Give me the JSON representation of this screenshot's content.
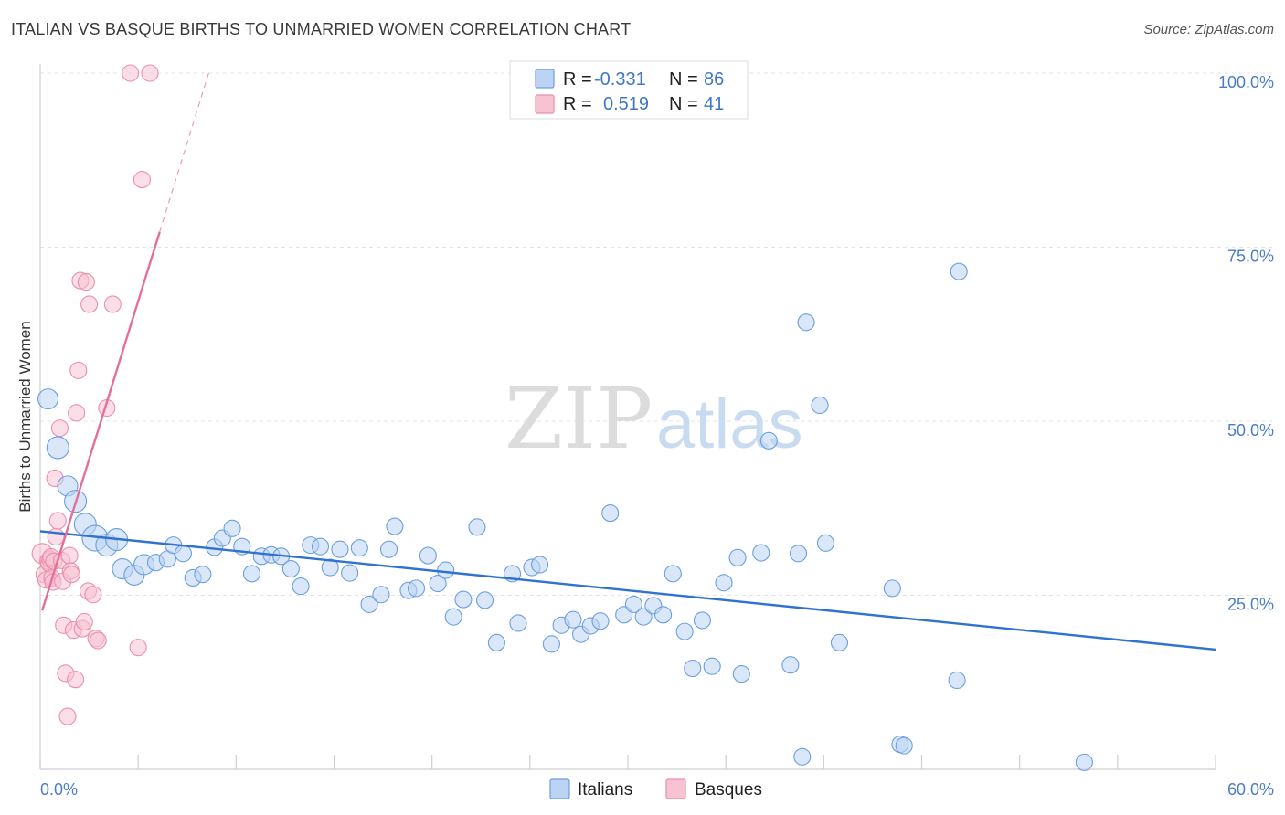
{
  "title": "ITALIAN VS BASQUE BIRTHS TO UNMARRIED WOMEN CORRELATION CHART",
  "source": "Source: ZipAtlas.com",
  "watermark": {
    "zip": "ZIP",
    "atlas": "atlas"
  },
  "chart_data": {
    "type": "scatter",
    "ylabel": "Births to Unmarried Women",
    "xlim": [
      0,
      60
    ],
    "ylim": [
      0,
      100
    ],
    "x_tick_labels": [
      "0.0%",
      "60.0%"
    ],
    "y_ticks": [
      25,
      50,
      75,
      100
    ],
    "y_tick_labels": [
      "25.0%",
      "50.0%",
      "75.0%",
      "100.0%"
    ],
    "grid": true,
    "legend_position": "top-center",
    "colors": {
      "italians": "#6a9fe0",
      "italians_fill": "#bcd3f3",
      "italians_line": "#2f72cf",
      "basques": "#ec8eac",
      "basques_fill": "#f7c3d3",
      "basques_line": "#e4709a"
    },
    "stats": [
      {
        "r_label": "R = ",
        "r": "-0.331",
        "n_label": "N = ",
        "n": "86"
      },
      {
        "r_label": "R = ",
        "r": "0.519",
        "n_label": "N = ",
        "n": "41"
      }
    ],
    "series": [
      {
        "name": "Italians",
        "trend": {
          "x": [
            0,
            60
          ],
          "y": [
            34.2,
            17.2
          ]
        },
        "points": [
          [
            0.4,
            53.2,
            11
          ],
          [
            0.9,
            46.2,
            12
          ],
          [
            1.4,
            40.7,
            11
          ],
          [
            1.8,
            38.5,
            12
          ],
          [
            2.3,
            35.2,
            12
          ],
          [
            2.8,
            33.2,
            14
          ],
          [
            3.4,
            32.2,
            12
          ],
          [
            3.9,
            33.0,
            12
          ],
          [
            4.2,
            28.8,
            11
          ],
          [
            4.8,
            27.9,
            11
          ],
          [
            5.3,
            29.4,
            11
          ],
          [
            5.9,
            29.7,
            9
          ],
          [
            6.5,
            30.2,
            9
          ],
          [
            6.8,
            32.2,
            9
          ],
          [
            7.3,
            31.0,
            9
          ],
          [
            7.8,
            27.5,
            9
          ],
          [
            8.3,
            28.0,
            9
          ],
          [
            8.9,
            31.9,
            9
          ],
          [
            9.3,
            33.2,
            9
          ],
          [
            9.8,
            34.6,
            9
          ],
          [
            10.3,
            32.0,
            9
          ],
          [
            10.8,
            28.1,
            9
          ],
          [
            11.3,
            30.6,
            9
          ],
          [
            11.8,
            30.8,
            9
          ],
          [
            12.3,
            30.6,
            9
          ],
          [
            12.8,
            28.8,
            9
          ],
          [
            13.3,
            26.3,
            9
          ],
          [
            13.8,
            32.2,
            9
          ],
          [
            14.3,
            32.0,
            9
          ],
          [
            14.8,
            29.0,
            9
          ],
          [
            15.3,
            31.6,
            9
          ],
          [
            15.8,
            28.2,
            9
          ],
          [
            16.3,
            31.8,
            9
          ],
          [
            16.8,
            23.7,
            9
          ],
          [
            17.4,
            25.1,
            9
          ],
          [
            17.8,
            31.6,
            9
          ],
          [
            18.1,
            34.9,
            9
          ],
          [
            18.8,
            25.7,
            9
          ],
          [
            19.2,
            26.0,
            9
          ],
          [
            19.8,
            30.7,
            9
          ],
          [
            20.3,
            26.7,
            9
          ],
          [
            20.7,
            28.6,
            9
          ],
          [
            21.1,
            21.9,
            9
          ],
          [
            21.6,
            24.4,
            9
          ],
          [
            22.3,
            34.8,
            9
          ],
          [
            22.7,
            24.3,
            9
          ],
          [
            23.3,
            18.2,
            9
          ],
          [
            24.1,
            28.1,
            9
          ],
          [
            24.4,
            21.0,
            9
          ],
          [
            25.1,
            29.0,
            9
          ],
          [
            25.5,
            29.4,
            9
          ],
          [
            26.1,
            18.0,
            9
          ],
          [
            26.6,
            20.7,
            9
          ],
          [
            27.2,
            21.5,
            9
          ],
          [
            27.6,
            19.4,
            9
          ],
          [
            28.1,
            20.6,
            9
          ],
          [
            28.6,
            21.3,
            9
          ],
          [
            29.1,
            36.8,
            9
          ],
          [
            29.8,
            22.2,
            9
          ],
          [
            30.3,
            23.7,
            9
          ],
          [
            30.8,
            21.9,
            9
          ],
          [
            31.3,
            23.5,
            9
          ],
          [
            31.8,
            22.2,
            9
          ],
          [
            32.3,
            28.1,
            9
          ],
          [
            32.9,
            19.8,
            9
          ],
          [
            33.3,
            14.5,
            9
          ],
          [
            33.8,
            21.4,
            9
          ],
          [
            34.3,
            14.8,
            9
          ],
          [
            34.9,
            26.8,
            9
          ],
          [
            35.6,
            30.4,
            9
          ],
          [
            35.8,
            13.7,
            9
          ],
          [
            36.8,
            31.1,
            9
          ],
          [
            37.2,
            47.2,
            9
          ],
          [
            38.3,
            15.0,
            9
          ],
          [
            38.9,
            1.8,
            9
          ],
          [
            38.7,
            31.0,
            9
          ],
          [
            39.1,
            64.2,
            9
          ],
          [
            39.8,
            52.3,
            9
          ],
          [
            40.1,
            32.5,
            9
          ],
          [
            40.8,
            18.2,
            9
          ],
          [
            43.5,
            26.0,
            9
          ],
          [
            43.9,
            3.6,
            9
          ],
          [
            44.1,
            3.4,
            9
          ],
          [
            46.8,
            12.8,
            9
          ],
          [
            46.9,
            71.5,
            9
          ],
          [
            53.3,
            1.0,
            9
          ]
        ]
      },
      {
        "name": "Basques",
        "trend": {
          "x": [
            0.1,
            6.1
          ],
          "y": [
            22.8,
            77.2
          ]
        },
        "trend_dashed": {
          "x": [
            6.1,
            8.6
          ],
          "y": [
            77.2,
            100
          ]
        },
        "points": [
          [
            0.1,
            31.0,
            11
          ],
          [
            0.2,
            28.0,
            9
          ],
          [
            0.3,
            27.2,
            9
          ],
          [
            0.4,
            29.9,
            9
          ],
          [
            0.45,
            29.6,
            9
          ],
          [
            0.5,
            30.2,
            9
          ],
          [
            0.55,
            30.5,
            9
          ],
          [
            0.6,
            27.5,
            9
          ],
          [
            0.65,
            26.9,
            9
          ],
          [
            0.7,
            29.9,
            9
          ],
          [
            0.75,
            41.8,
            9
          ],
          [
            0.8,
            33.4,
            9
          ],
          [
            0.9,
            35.7,
            9
          ],
          [
            1.0,
            49.0,
            9
          ],
          [
            1.1,
            30.0,
            9
          ],
          [
            1.15,
            27.0,
            9
          ],
          [
            1.2,
            20.7,
            9
          ],
          [
            1.3,
            13.8,
            9
          ],
          [
            1.4,
            7.6,
            9
          ],
          [
            1.5,
            30.7,
            9
          ],
          [
            1.55,
            28.5,
            9
          ],
          [
            1.6,
            28.0,
            9
          ],
          [
            1.7,
            20.0,
            9
          ],
          [
            1.8,
            12.9,
            9
          ],
          [
            1.85,
            51.2,
            9
          ],
          [
            1.95,
            57.3,
            9
          ],
          [
            2.05,
            70.2,
            9
          ],
          [
            2.15,
            20.2,
            9
          ],
          [
            2.25,
            21.2,
            9
          ],
          [
            2.35,
            70.0,
            9
          ],
          [
            2.45,
            25.6,
            9
          ],
          [
            2.5,
            66.8,
            9
          ],
          [
            2.7,
            25.1,
            9
          ],
          [
            2.85,
            18.8,
            9
          ],
          [
            2.95,
            18.5,
            9
          ],
          [
            3.4,
            51.9,
            9
          ],
          [
            3.7,
            66.8,
            9
          ],
          [
            4.6,
            100.0,
            9
          ],
          [
            5.0,
            17.5,
            9
          ],
          [
            5.2,
            84.7,
            9
          ],
          [
            5.6,
            100.0,
            9
          ]
        ]
      }
    ]
  }
}
